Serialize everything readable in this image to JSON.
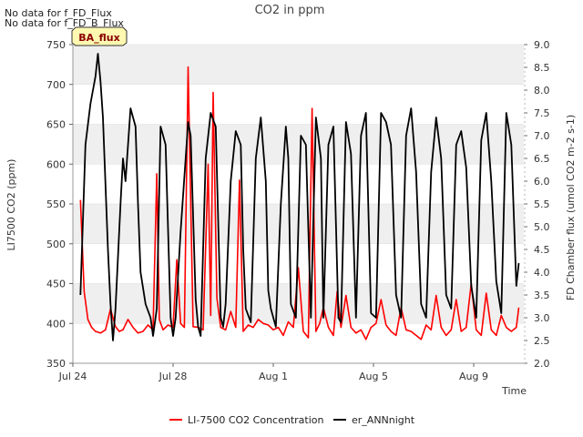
{
  "chart_data": {
    "type": "line",
    "title": "CO2 in ppm",
    "xlabel": "Time",
    "ylabel": "LI7500 CO2 (ppm)",
    "y2label": "FD Chamber flux (umol CO2 m-2 s-1)",
    "notes": [
      "No data for f_FD_Flux",
      "No data for f_FD_B_Flux"
    ],
    "badge": "BA_flux",
    "x_ticks": [
      {
        "day": 0,
        "label": "Jul 24"
      },
      {
        "day": 4,
        "label": "Jul 28"
      },
      {
        "day": 8,
        "label": "Aug 1"
      },
      {
        "day": 12,
        "label": "Aug 5"
      },
      {
        "day": 16,
        "label": "Aug 9"
      }
    ],
    "xlim": [
      0,
      18
    ],
    "ylim": [
      350,
      750
    ],
    "y_ticks": [
      350,
      400,
      450,
      500,
      550,
      600,
      650,
      700,
      750
    ],
    "y2lim": [
      2.0,
      9.0
    ],
    "y2_ticks": [
      "2.0",
      "2.5",
      "3.0",
      "3.5",
      "4.0",
      "4.5",
      "5.0",
      "5.5",
      "6.0",
      "6.5",
      "7.0",
      "7.5",
      "8.0",
      "8.5",
      "9.0"
    ],
    "grid_bands": true,
    "legend_position": "bottom",
    "series": [
      {
        "name": "LI-7500 CO2 Concentration",
        "color": "#ff0000",
        "axis": "left",
        "x": [
          0.3,
          0.45,
          0.6,
          0.75,
          0.9,
          1.1,
          1.3,
          1.5,
          1.7,
          1.85,
          2.0,
          2.2,
          2.4,
          2.6,
          2.8,
          3.0,
          3.2,
          3.35,
          3.45,
          3.6,
          3.8,
          4.0,
          4.15,
          4.3,
          4.45,
          4.6,
          4.8,
          5.0,
          5.2,
          5.4,
          5.5,
          5.6,
          5.75,
          5.9,
          6.1,
          6.3,
          6.5,
          6.65,
          6.8,
          7.0,
          7.2,
          7.4,
          7.6,
          7.8,
          8.0,
          8.2,
          8.4,
          8.6,
          8.8,
          9.0,
          9.2,
          9.4,
          9.55,
          9.7,
          9.85,
          10.0,
          10.2,
          10.4,
          10.55,
          10.7,
          10.9,
          11.1,
          11.3,
          11.5,
          11.7,
          11.9,
          12.1,
          12.3,
          12.5,
          12.7,
          12.9,
          13.1,
          13.3,
          13.5,
          13.7,
          13.9,
          14.1,
          14.3,
          14.5,
          14.7,
          14.9,
          15.1,
          15.3,
          15.5,
          15.7,
          15.9,
          16.1,
          16.3,
          16.5,
          16.7,
          16.9,
          17.1,
          17.3,
          17.5,
          17.7,
          17.8
        ],
        "y": [
          555,
          440,
          405,
          395,
          390,
          388,
          392,
          418,
          396,
          390,
          392,
          405,
          395,
          388,
          390,
          398,
          392,
          588,
          405,
          392,
          398,
          395,
          480,
          400,
          395,
          722,
          396,
          395,
          392,
          600,
          410,
          690,
          432,
          395,
          392,
          415,
          395,
          580,
          390,
          398,
          395,
          405,
          400,
          398,
          392,
          395,
          385,
          402,
          395,
          470,
          390,
          382,
          670,
          390,
          400,
          420,
          395,
          385,
          440,
          395,
          435,
          395,
          388,
          392,
          380,
          395,
          400,
          430,
          398,
          390,
          385,
          420,
          392,
          390,
          385,
          380,
          398,
          392,
          435,
          395,
          385,
          392,
          430,
          390,
          395,
          450,
          392,
          385,
          438,
          392,
          385,
          410,
          395,
          390,
          395,
          420
        ]
      },
      {
        "name": "er_ANNnight",
        "color": "#000000",
        "axis": "right",
        "x": [
          0.3,
          0.5,
          0.7,
          0.9,
          1.0,
          1.1,
          1.2,
          1.4,
          1.5,
          1.6,
          1.7,
          1.9,
          2.0,
          2.1,
          2.3,
          2.5,
          2.6,
          2.7,
          2.9,
          3.1,
          3.2,
          3.35,
          3.5,
          3.7,
          3.9,
          4.0,
          4.1,
          4.3,
          4.5,
          4.6,
          4.7,
          4.9,
          5.0,
          5.1,
          5.3,
          5.5,
          5.7,
          5.9,
          6.0,
          6.1,
          6.3,
          6.5,
          6.7,
          6.8,
          6.9,
          7.1,
          7.3,
          7.5,
          7.7,
          7.8,
          7.9,
          8.1,
          8.3,
          8.5,
          8.6,
          8.7,
          8.9,
          9.1,
          9.3,
          9.5,
          9.7,
          9.9,
          10.0,
          10.2,
          10.4,
          10.6,
          10.7,
          10.9,
          11.1,
          11.3,
          11.5,
          11.7,
          11.9,
          12.1,
          12.3,
          12.5,
          12.7,
          12.9,
          13.1,
          13.3,
          13.5,
          13.7,
          13.9,
          14.1,
          14.3,
          14.5,
          14.7,
          14.9,
          15.1,
          15.3,
          15.5,
          15.7,
          15.9,
          16.1,
          16.3,
          16.5,
          16.7,
          16.9,
          17.1,
          17.3,
          17.5,
          17.7,
          17.8
        ],
        "y": [
          3.5,
          6.8,
          7.7,
          8.3,
          8.8,
          8.2,
          7.4,
          4.5,
          3.3,
          2.5,
          3.2,
          5.5,
          6.5,
          6.0,
          7.6,
          7.2,
          5.5,
          4.0,
          3.3,
          3.0,
          2.6,
          3.2,
          7.2,
          6.8,
          3.0,
          2.6,
          3.0,
          4.9,
          6.5,
          7.3,
          7.0,
          3.4,
          2.8,
          2.6,
          6.5,
          7.5,
          7.2,
          3.0,
          2.8,
          3.3,
          6.0,
          7.1,
          6.8,
          4.5,
          3.2,
          2.9,
          6.5,
          7.4,
          6.0,
          3.6,
          3.2,
          2.8,
          5.5,
          7.2,
          6.5,
          3.3,
          3.0,
          7.0,
          6.8,
          3.0,
          7.4,
          6.5,
          3.0,
          6.8,
          7.2,
          3.0,
          2.9,
          7.3,
          6.6,
          3.0,
          7.0,
          7.5,
          3.1,
          3.0,
          7.5,
          7.3,
          6.8,
          3.5,
          3.0,
          7.0,
          7.6,
          6.2,
          3.3,
          3.0,
          6.2,
          7.4,
          6.5,
          3.5,
          3.2,
          6.8,
          7.1,
          6.3,
          3.7,
          3.0,
          6.9,
          7.5,
          6.0,
          3.8,
          3.1,
          7.5,
          6.8,
          3.7,
          4.2
        ]
      }
    ]
  }
}
